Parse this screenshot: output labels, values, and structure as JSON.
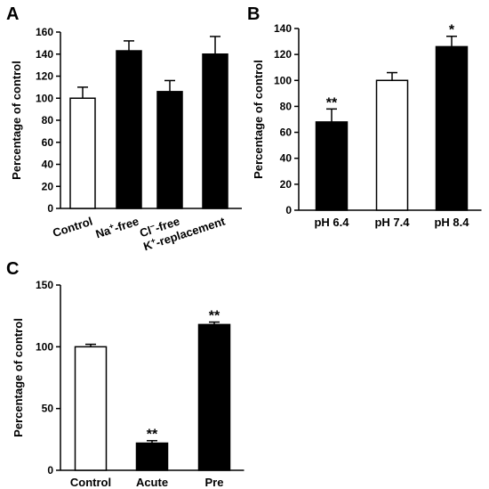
{
  "chart_data": [
    {
      "panel": "A",
      "type": "bar",
      "ylabel": "Percentage of control",
      "ylim": [
        0,
        160
      ],
      "yticks": [
        0,
        20,
        40,
        60,
        80,
        100,
        120,
        140,
        160
      ],
      "categories": [
        "Control",
        "Na+-free",
        "Cl−-free",
        "K+-replacement"
      ],
      "category_parts": [
        [
          {
            "t": "Control"
          }
        ],
        [
          {
            "t": "Na"
          },
          {
            "t": "+",
            "sup": true
          },
          {
            "t": "-free"
          }
        ],
        [
          {
            "t": "Cl"
          },
          {
            "t": "−",
            "sup": true
          },
          {
            "t": "-free"
          }
        ],
        [
          {
            "t": "K"
          },
          {
            "t": "+",
            "sup": true
          },
          {
            "t": "-replacement"
          }
        ]
      ],
      "values": [
        100,
        143,
        106,
        140
      ],
      "errors": [
        10,
        9,
        10,
        16
      ],
      "fills": [
        "#ffffff",
        "#000000",
        "#000000",
        "#000000"
      ],
      "significance": [
        "",
        "",
        "",
        ""
      ],
      "grid": false
    },
    {
      "panel": "B",
      "type": "bar",
      "ylabel": "Percentage of control",
      "ylim": [
        0,
        140
      ],
      "yticks": [
        0,
        20,
        40,
        60,
        80,
        100,
        120,
        140
      ],
      "categories": [
        "pH 6.4",
        "pH 7.4",
        "pH 8.4"
      ],
      "values": [
        68,
        100,
        126
      ],
      "errors": [
        10,
        6,
        8
      ],
      "fills": [
        "#000000",
        "#ffffff",
        "#000000"
      ],
      "significance": [
        "**",
        "",
        "*"
      ],
      "grid": false
    },
    {
      "panel": "C",
      "type": "bar",
      "ylabel": "Percentage of control",
      "ylim": [
        0,
        150
      ],
      "yticks": [
        0,
        50,
        100,
        150
      ],
      "categories": [
        "Control",
        "Acute",
        "Pre"
      ],
      "values": [
        100,
        22,
        118
      ],
      "errors": [
        2,
        2,
        2
      ],
      "fills": [
        "#ffffff",
        "#000000",
        "#000000"
      ],
      "significance": [
        "",
        "**",
        "**"
      ],
      "grid": false
    }
  ]
}
